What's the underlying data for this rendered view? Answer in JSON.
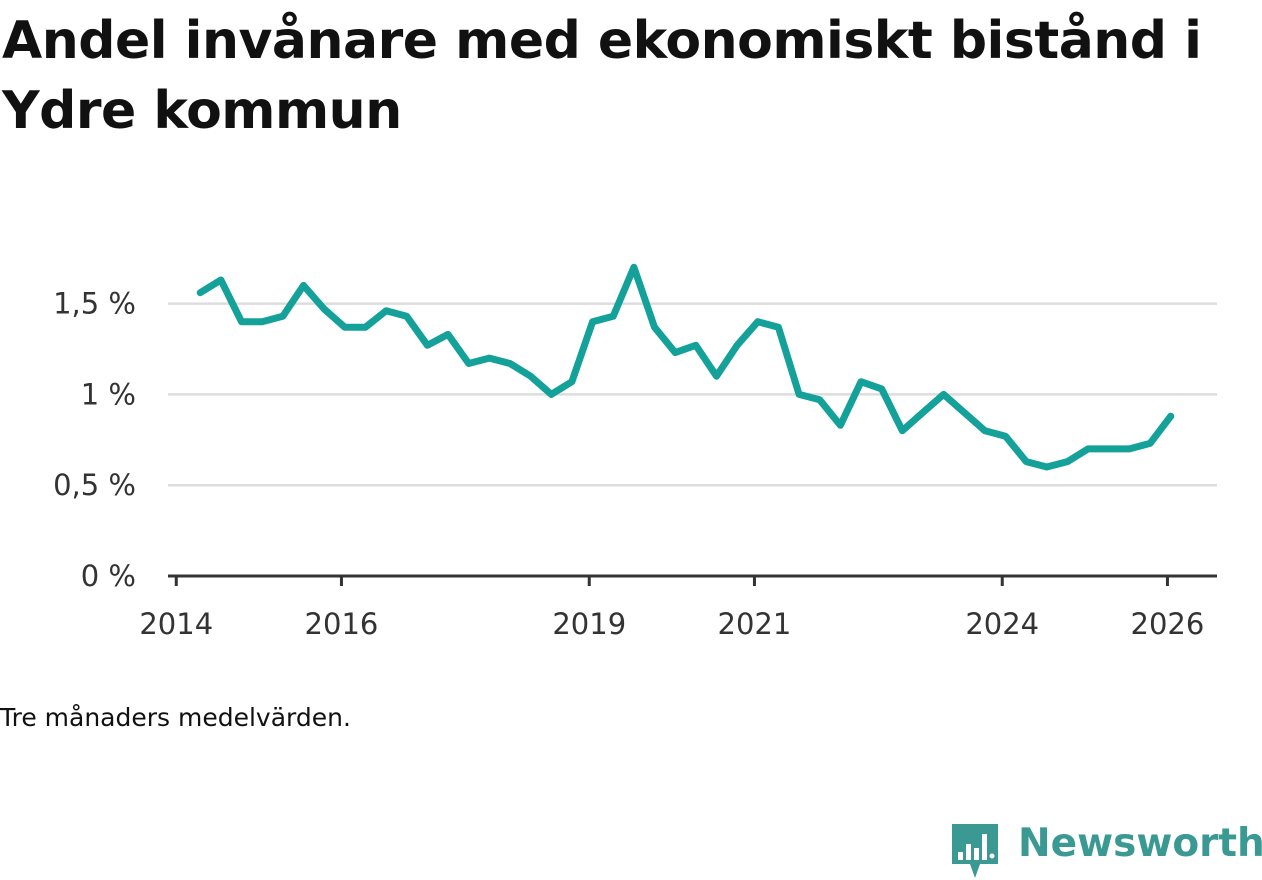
{
  "title": "Andel invånare med ekonomiskt bistånd i Ydre kommun",
  "note": "Tre månaders medelvärden.",
  "brand": {
    "name": "Newsworthy",
    "icon": "newsworthy-logo-icon",
    "color": "#3a9a93"
  },
  "colors": {
    "line": "#13a199",
    "grid": "#dddddd",
    "axis": "#333333"
  },
  "chart_data": {
    "type": "line",
    "title": "Andel invånare med ekonomiskt bistånd i Ydre kommun",
    "xlabel": "",
    "ylabel": "",
    "grid": true,
    "legend": "none",
    "xlim": [
      2013.9,
      2026.6
    ],
    "ylim": [
      0,
      1.85
    ],
    "x_ticks": [
      2014,
      2016,
      2019,
      2021,
      2024,
      2026
    ],
    "x_tick_labels": [
      "2014",
      "2016",
      "2019",
      "2021",
      "2024",
      "2026"
    ],
    "y_ticks": [
      0,
      0.5,
      1,
      1.5
    ],
    "y_tick_labels": [
      "0 %",
      "0,5 %",
      "1 %",
      "1,5 %"
    ],
    "series": [
      {
        "name": "Andel invånare med ekonomiskt bistånd",
        "x": [
          2014.29,
          2014.54,
          2014.79,
          2015.04,
          2015.29,
          2015.54,
          2015.79,
          2016.04,
          2016.29,
          2016.54,
          2016.79,
          2017.04,
          2017.29,
          2017.54,
          2017.79,
          2018.04,
          2018.29,
          2018.54,
          2018.79,
          2019.04,
          2019.29,
          2019.54,
          2019.79,
          2020.04,
          2020.29,
          2020.54,
          2020.79,
          2021.04,
          2021.29,
          2021.54,
          2021.79,
          2022.04,
          2022.29,
          2022.54,
          2022.79,
          2023.04,
          2023.29,
          2023.54,
          2023.79,
          2024.04,
          2024.29,
          2024.54,
          2024.79,
          2025.04,
          2025.29,
          2025.54,
          2025.79,
          2026.04
        ],
        "values": [
          1.56,
          1.63,
          1.4,
          1.4,
          1.43,
          1.6,
          1.47,
          1.37,
          1.37,
          1.46,
          1.43,
          1.27,
          1.33,
          1.17,
          1.2,
          1.17,
          1.1,
          1.0,
          1.07,
          1.4,
          1.43,
          1.7,
          1.37,
          1.23,
          1.27,
          1.1,
          1.27,
          1.4,
          1.37,
          1.0,
          0.97,
          0.83,
          1.07,
          1.03,
          0.8,
          0.9,
          1.0,
          0.9,
          0.8,
          0.77,
          0.63,
          0.6,
          0.63,
          0.7,
          0.7,
          0.7,
          0.73,
          0.88
        ]
      }
    ]
  }
}
